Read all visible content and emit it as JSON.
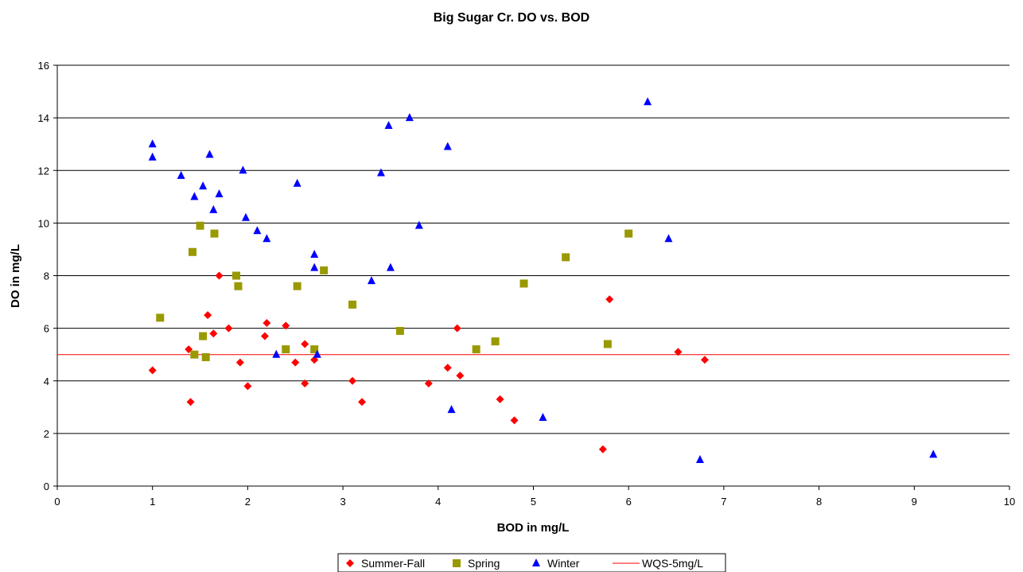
{
  "chart_data": {
    "type": "scatter",
    "title": "Big Sugar Cr. DO vs. BOD",
    "xlabel": "BOD in mg/L",
    "ylabel": "DO in mg/L",
    "xlim": [
      0,
      10
    ],
    "ylim": [
      0,
      16
    ],
    "xticks": [
      "0",
      "1",
      "2",
      "3",
      "4",
      "5",
      "6",
      "7",
      "8",
      "9",
      "10"
    ],
    "yticks": [
      "0",
      "2",
      "4",
      "6",
      "8",
      "10",
      "12",
      "14",
      "16"
    ],
    "grid": "horizontal",
    "legend_position": "bottom",
    "series": [
      {
        "name": "Summer-Fall",
        "marker": "diamond",
        "color": "#ff0000",
        "points": [
          [
            1.0,
            4.4
          ],
          [
            1.4,
            3.2
          ],
          [
            1.38,
            5.2
          ],
          [
            1.58,
            6.5
          ],
          [
            1.64,
            5.8
          ],
          [
            1.7,
            8.0
          ],
          [
            1.8,
            6.0
          ],
          [
            1.92,
            4.7
          ],
          [
            2.0,
            3.8
          ],
          [
            2.18,
            5.7
          ],
          [
            2.2,
            6.2
          ],
          [
            2.4,
            6.1
          ],
          [
            2.5,
            4.7
          ],
          [
            2.6,
            5.4
          ],
          [
            2.6,
            3.9
          ],
          [
            2.7,
            4.8
          ],
          [
            3.1,
            4.0
          ],
          [
            3.2,
            3.2
          ],
          [
            3.9,
            3.9
          ],
          [
            4.1,
            4.5
          ],
          [
            4.2,
            6.0
          ],
          [
            4.23,
            4.2
          ],
          [
            4.65,
            3.3
          ],
          [
            4.8,
            2.5
          ],
          [
            5.73,
            1.4
          ],
          [
            5.8,
            7.1
          ],
          [
            6.52,
            5.1
          ],
          [
            6.8,
            4.8
          ]
        ]
      },
      {
        "name": "Spring",
        "marker": "square",
        "color": "#999900",
        "points": [
          [
            1.08,
            6.4
          ],
          [
            1.42,
            8.9
          ],
          [
            1.44,
            5.0
          ],
          [
            1.5,
            9.9
          ],
          [
            1.53,
            5.7
          ],
          [
            1.56,
            4.9
          ],
          [
            1.65,
            9.6
          ],
          [
            1.88,
            8.0
          ],
          [
            1.9,
            7.6
          ],
          [
            2.4,
            5.2
          ],
          [
            2.52,
            7.6
          ],
          [
            2.7,
            5.2
          ],
          [
            2.8,
            8.2
          ],
          [
            3.1,
            6.9
          ],
          [
            3.6,
            5.9
          ],
          [
            4.4,
            5.2
          ],
          [
            4.6,
            5.5
          ],
          [
            4.9,
            7.7
          ],
          [
            5.34,
            8.7
          ],
          [
            5.78,
            5.4
          ],
          [
            6.0,
            9.6
          ]
        ]
      },
      {
        "name": "Winter",
        "marker": "triangle",
        "color": "#0000ff",
        "points": [
          [
            1.0,
            13.0
          ],
          [
            1.0,
            12.5
          ],
          [
            1.3,
            11.8
          ],
          [
            1.44,
            11.0
          ],
          [
            1.53,
            11.4
          ],
          [
            1.6,
            12.6
          ],
          [
            1.64,
            10.5
          ],
          [
            1.7,
            11.1
          ],
          [
            1.95,
            12.0
          ],
          [
            1.98,
            10.2
          ],
          [
            2.1,
            9.7
          ],
          [
            2.2,
            9.4
          ],
          [
            2.3,
            5.0
          ],
          [
            2.52,
            11.5
          ],
          [
            2.7,
            8.8
          ],
          [
            2.7,
            8.3
          ],
          [
            2.73,
            5.0
          ],
          [
            3.3,
            7.8
          ],
          [
            3.4,
            11.9
          ],
          [
            3.48,
            13.7
          ],
          [
            3.5,
            8.3
          ],
          [
            3.7,
            14.0
          ],
          [
            3.8,
            9.9
          ],
          [
            4.1,
            12.9
          ],
          [
            4.14,
            2.9
          ],
          [
            5.1,
            2.6
          ],
          [
            6.2,
            14.6
          ],
          [
            6.42,
            9.4
          ],
          [
            6.75,
            1.0
          ],
          [
            9.2,
            1.2
          ]
        ]
      }
    ],
    "reference_line": {
      "name": "WQS-5mg/L",
      "y": 5,
      "color": "#ff0000"
    }
  }
}
